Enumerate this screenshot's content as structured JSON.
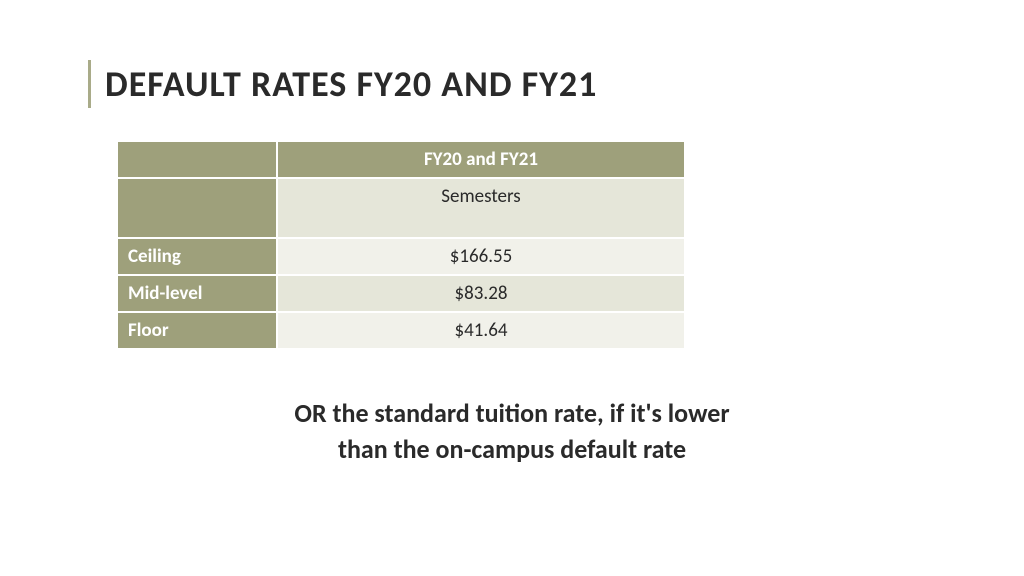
{
  "title": "DEFAULT RATES FY20 AND FY21",
  "table": {
    "header": "FY20 and FY21",
    "subheader": "Semesters",
    "rows": [
      {
        "label": "Ceiling",
        "value": "$166.55"
      },
      {
        "label": "Mid-level",
        "value": "$83.28"
      },
      {
        "label": "Floor",
        "value": "$41.64"
      }
    ]
  },
  "footer": {
    "line1": "OR the standard tuition rate, if it's lower",
    "line2": "than the on-campus default rate"
  },
  "colors": {
    "olive": "#9ea07b",
    "cell_light": "#f1f1ea",
    "cell_dark": "#e5e6d9",
    "title_bar": "#a9ab89",
    "text": "#2a2a2a",
    "background": "#ffffff"
  }
}
